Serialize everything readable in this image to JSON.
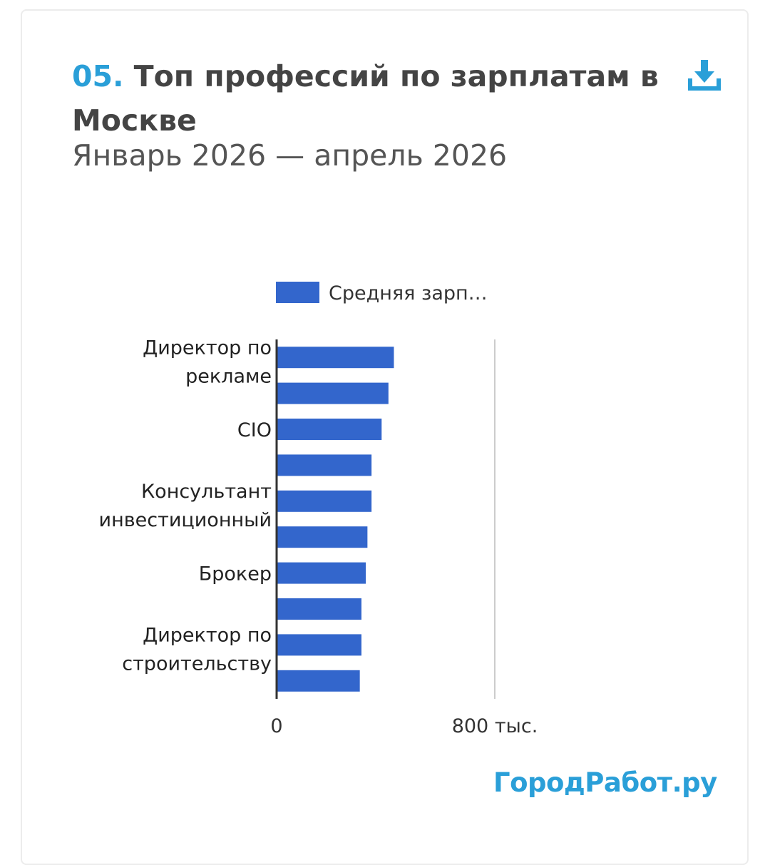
{
  "header": {
    "number": "05.",
    "title": "Топ профессий по зарплатам в Москве",
    "subtitle": "Январь 2026 — апрель 2026",
    "download_icon": "download-icon"
  },
  "chart_data": {
    "type": "bar",
    "orientation": "horizontal",
    "legend": {
      "label": "Средняя зарп…",
      "placement": "top",
      "color": "#3366cc"
    },
    "categories": [
      "Директор по рекламе",
      "",
      "CIO",
      "",
      "Консультант инвестиционный",
      "",
      "Брокер",
      "",
      "Директор по строительству",
      ""
    ],
    "series": [
      {
        "name": "Средняя зарп…",
        "color": "#3366cc",
        "values": [
          430000,
          410000,
          385000,
          348000,
          348000,
          333000,
          327000,
          311000,
          311000,
          305000
        ]
      }
    ],
    "xlim": [
      0,
      1600000
    ],
    "x_ticks": [
      {
        "value": 0,
        "label": "0"
      },
      {
        "value": 800000,
        "label": "800 тыс."
      }
    ],
    "grid": true
  },
  "brand": {
    "text": "ГородРабот.ру"
  },
  "colors": {
    "accent": "#2a9fd8",
    "bar": "#3366cc",
    "title": "#444444"
  }
}
